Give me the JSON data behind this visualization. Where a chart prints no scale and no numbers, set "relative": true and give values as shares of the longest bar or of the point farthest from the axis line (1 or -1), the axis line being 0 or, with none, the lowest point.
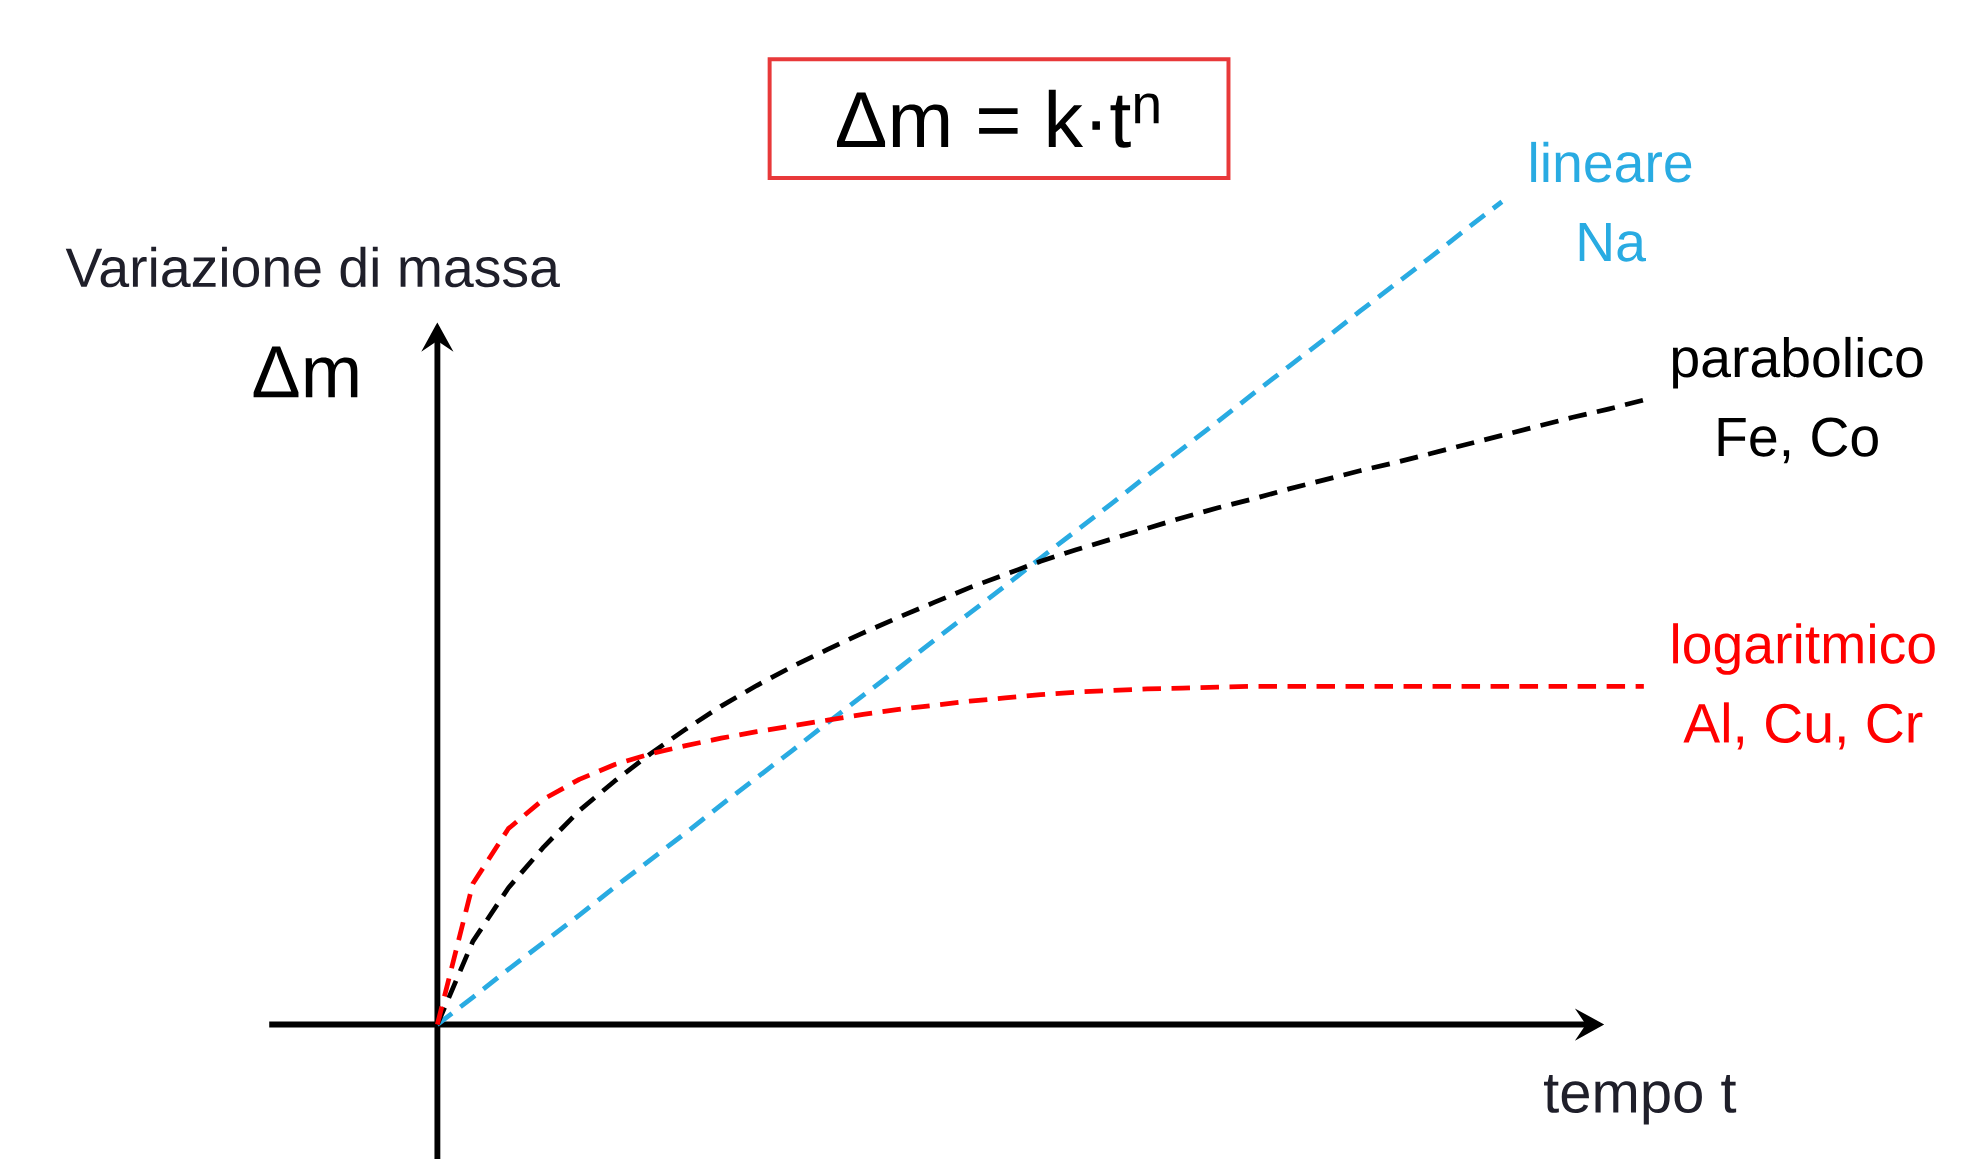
{
  "chart_data": {
    "type": "line",
    "title": "Δm = k·t$^{n}$",
    "xlabel": "tempo t",
    "ylabel": "Variazione di massa",
    "annotations": [
      "Δm"
    ],
    "relative": true,
    "line_style": "dashed",
    "categories": [
      null,
      null,
      null,
      null,
      null,
      null,
      null,
      null,
      null,
      null,
      null,
      null,
      null,
      null,
      null,
      null,
      null,
      null,
      null,
      null,
      null,
      null,
      null,
      null,
      null,
      null,
      null,
      null,
      null,
      null,
      null,
      null,
      null,
      null,
      null
    ],
    "series": [
      {
        "name": "lineare Na",
        "color": "#29abe2",
        "values": [
          0,
          0.033,
          0.067,
          0.1,
          0.133,
          0.167,
          0.2,
          0.233,
          0.267,
          0.3,
          0.333,
          0.367,
          0.4,
          0.433,
          0.467,
          0.5,
          0.533,
          0.567,
          0.6,
          0.633,
          0.667,
          0.7,
          0.733,
          0.767,
          0.8,
          0.833,
          0.867,
          0.9,
          0.933,
          0.967,
          1.0,
          null,
          null,
          null,
          null
        ]
      },
      {
        "name": "parabolico Fe, Co",
        "color": "#000000",
        "values": [
          0,
          0.101,
          0.166,
          0.216,
          0.26,
          0.296,
          0.329,
          0.359,
          0.387,
          0.412,
          0.435,
          0.456,
          0.476,
          0.495,
          0.513,
          0.531,
          0.547,
          0.563,
          0.577,
          0.59,
          0.603,
          0.616,
          0.628,
          0.639,
          0.651,
          0.662,
          0.673,
          0.683,
          0.694,
          0.705,
          0.716,
          0.727,
          0.738,
          0.748,
          0.759
        ]
      },
      {
        "name": "logaritmico Al, Cu, Cr",
        "color": "#ff0000",
        "values": [
          0,
          0.171,
          0.238,
          0.274,
          0.298,
          0.316,
          0.329,
          0.339,
          0.348,
          0.356,
          0.363,
          0.37,
          0.377,
          0.383,
          0.388,
          0.393,
          0.397,
          0.401,
          0.404,
          0.406,
          0.408,
          0.409,
          0.41,
          0.411,
          0.411,
          0.411,
          0.411,
          0.411,
          0.411,
          0.411,
          0.411,
          0.411,
          0.411,
          0.411,
          0.411
        ]
      }
    ]
  }
}
